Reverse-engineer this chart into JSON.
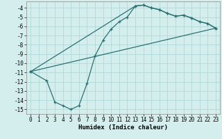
{
  "xlabel": "Humidex (Indice chaleur)",
  "background_color": "#d4eeee",
  "line_color": "#2a7070",
  "grid_color": "#b0d8d8",
  "xlim": [
    -0.5,
    23.5
  ],
  "ylim": [
    -15.5,
    -3.3
  ],
  "xticks": [
    0,
    1,
    2,
    3,
    4,
    5,
    6,
    7,
    8,
    9,
    10,
    11,
    12,
    13,
    14,
    15,
    16,
    17,
    18,
    19,
    20,
    21,
    22,
    23
  ],
  "yticks": [
    -4,
    -5,
    -6,
    -7,
    -8,
    -9,
    -10,
    -11,
    -12,
    -13,
    -14,
    -15
  ],
  "line1_x": [
    0,
    2,
    3,
    4,
    5,
    6,
    7,
    8,
    9,
    10,
    11,
    12,
    13,
    14,
    15,
    16,
    17,
    18,
    19,
    20,
    21,
    22,
    23
  ],
  "line1_y": [
    -10.9,
    -11.9,
    -14.2,
    -14.6,
    -15.0,
    -14.6,
    -12.2,
    -9.2,
    -7.5,
    -6.3,
    -5.5,
    -5.0,
    -3.8,
    -3.7,
    -4.0,
    -4.2,
    -4.6,
    -4.9,
    -4.8,
    -5.1,
    -5.5,
    -5.7,
    -6.2
  ],
  "line2_x": [
    0,
    23
  ],
  "line2_y": [
    -10.9,
    -6.2
  ],
  "line3_x": [
    0,
    13,
    14,
    15,
    16,
    17,
    18,
    19,
    20,
    21,
    22,
    23
  ],
  "line3_y": [
    -10.9,
    -3.8,
    -3.7,
    -4.0,
    -4.2,
    -4.6,
    -4.9,
    -4.8,
    -5.1,
    -5.5,
    -5.7,
    -6.2
  ],
  "tick_fontsize": 5.5,
  "axis_fontsize": 6.5
}
